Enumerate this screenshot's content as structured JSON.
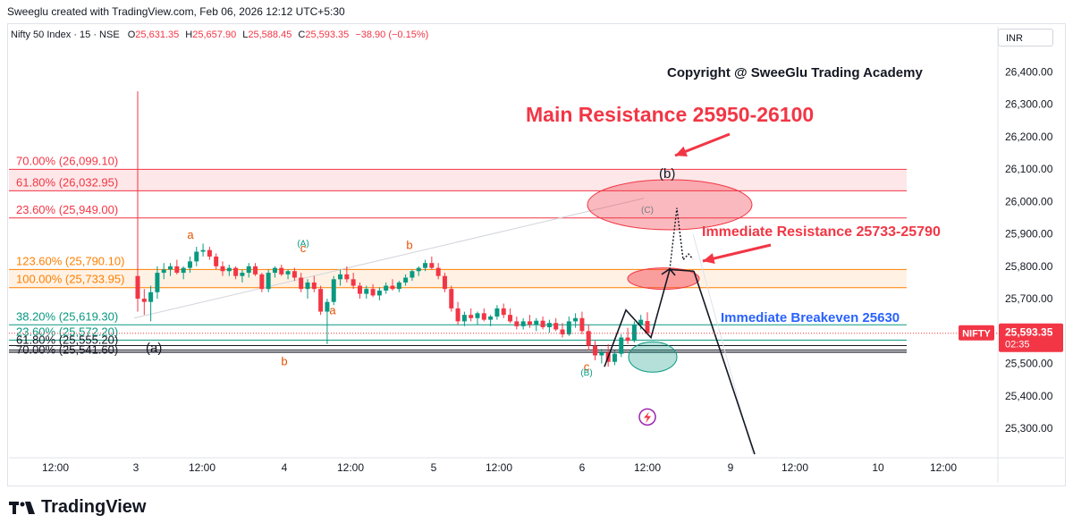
{
  "header": {
    "attribution": "Sweeglu created with TradingView.com, Feb 06, 2026 12:12 UTC+5:30",
    "symbol_line": "Nifty 50 Index · 15 · NSE",
    "o_label": "O",
    "o_value": "25,631.35",
    "h_label": "H",
    "h_value": "25,657.90",
    "l_label": "L",
    "l_value": "25,588.45",
    "c_label": "C",
    "c_value": "25,593.35",
    "change": "−38.90 (−0.15%)",
    "currency_button": "INR"
  },
  "footer": {
    "brand": "TradingView",
    "brand_icon": "tradingview-logo-icon"
  },
  "colors": {
    "up": "#089981",
    "down": "#f23645",
    "resistance_band": "#f23645",
    "orange_band": "#ff7f00",
    "teal_line": "#089981",
    "label_blue": "#2962ff",
    "price_tag": "#f23645"
  },
  "chart_data": {
    "type": "candlestick",
    "ylim": [
      25220,
      26470
    ],
    "y_ticks": [
      "26,400.00",
      "26,300.00",
      "26,200.00",
      "26,100.00",
      "26,000.00",
      "25,900.00",
      "25,800.00",
      "25,700.00",
      "25,600.00",
      "25,500.00",
      "25,400.00",
      "25,300.00"
    ],
    "y_tick_values": [
      26400,
      26300,
      26200,
      26100,
      26000,
      25900,
      25800,
      25700,
      25600,
      25500,
      25400,
      25300
    ],
    "x_ticks": [
      "12:00",
      "3",
      "12:00",
      "4",
      "12:00",
      "5",
      "12:00",
      "6",
      "12:00",
      "9",
      "12:00",
      "10",
      "12:00"
    ],
    "current_price": {
      "symbol": "NIFTY",
      "value": "25,593.35",
      "countdown": "02:35"
    },
    "fib_levels": [
      {
        "label": "70.00% (26,099.10)",
        "price": 26099.1,
        "color": "#f23645"
      },
      {
        "label": "61.80% (26,032.95)",
        "price": 26032.95,
        "color": "#f23645"
      },
      {
        "label": "23.60% (25,949.00)",
        "price": 25949.0,
        "color": "#f23645"
      },
      {
        "label": "123.60% (25,790.10)",
        "price": 25790.1,
        "color": "#ff7f00"
      },
      {
        "label": "100.00% (25,733.95)",
        "price": 25733.95,
        "color": "#ff7f00"
      },
      {
        "label": "38.20% (25,619.30)",
        "price": 25619.3,
        "color": "#089981"
      },
      {
        "label": "23.60% (25,572.20)",
        "price": 25572.2,
        "color": "#089981"
      },
      {
        "label": "61.80% (25,555.20)",
        "price": 25555.2,
        "color": "#131722"
      },
      {
        "label": "70.00% (25,541.60)",
        "price": 25541.6,
        "color": "#131722"
      }
    ],
    "annotations": {
      "copyright": "Copyright @ SweeGlu Trading Academy",
      "main_resistance": "Main Resistance 25950-26100",
      "immediate_resistance": "Immediate Resistance 25733-25790",
      "immediate_breakeven": "Immediate Breakeven 25630"
    },
    "wave_labels": [
      {
        "text": "(a)",
        "t": 0,
        "price": 25535,
        "color": "#131722"
      },
      {
        "text": "a",
        "t": 18,
        "price": 25885,
        "color": "#e65100"
      },
      {
        "text": "(A)",
        "t": 57,
        "price": 25862,
        "color": "#089981"
      },
      {
        "text": "c",
        "t": 57,
        "price": 25843,
        "color": "#e65100"
      },
      {
        "text": "b",
        "t": 52,
        "price": 25495,
        "color": "#e65100"
      },
      {
        "text": "a",
        "t": 66,
        "price": 25652,
        "color": "#e65100"
      },
      {
        "text": "b",
        "t": 91,
        "price": 25853,
        "color": "#e65100"
      },
      {
        "text": "c",
        "t": 151,
        "price": 25478,
        "color": "#e65100"
      },
      {
        "text": "(B)",
        "t": 151,
        "price": 25463,
        "color": "#089981"
      },
      {
        "text": "(b)",
        "t": 176,
        "price": 26072,
        "color": "#131722"
      },
      {
        "text": "(C)",
        "t": 173,
        "price": 25965,
        "color": "#787b86"
      }
    ],
    "candles": [
      {
        "o": 25770,
        "h": 26340,
        "l": 25660,
        "c": 25700
      },
      {
        "o": 25700,
        "h": 25730,
        "l": 25650,
        "c": 25690
      },
      {
        "o": 25690,
        "h": 25740,
        "l": 25630,
        "c": 25720
      },
      {
        "o": 25720,
        "h": 25800,
        "l": 25700,
        "c": 25780
      },
      {
        "o": 25780,
        "h": 25810,
        "l": 25760,
        "c": 25790
      },
      {
        "o": 25790,
        "h": 25810,
        "l": 25770,
        "c": 25800
      },
      {
        "o": 25800,
        "h": 25820,
        "l": 25775,
        "c": 25780
      },
      {
        "o": 25780,
        "h": 25800,
        "l": 25760,
        "c": 25795
      },
      {
        "o": 25795,
        "h": 25830,
        "l": 25780,
        "c": 25815
      },
      {
        "o": 25815,
        "h": 25860,
        "l": 25800,
        "c": 25845
      },
      {
        "o": 25845,
        "h": 25870,
        "l": 25830,
        "c": 25850
      },
      {
        "o": 25850,
        "h": 25860,
        "l": 25820,
        "c": 25830
      },
      {
        "o": 25830,
        "h": 25840,
        "l": 25790,
        "c": 25800
      },
      {
        "o": 25800,
        "h": 25815,
        "l": 25770,
        "c": 25785
      },
      {
        "o": 25785,
        "h": 25805,
        "l": 25770,
        "c": 25795
      },
      {
        "o": 25795,
        "h": 25800,
        "l": 25760,
        "c": 25770
      },
      {
        "o": 25770,
        "h": 25790,
        "l": 25750,
        "c": 25780
      },
      {
        "o": 25780,
        "h": 25810,
        "l": 25765,
        "c": 25800
      },
      {
        "o": 25800,
        "h": 25810,
        "l": 25770,
        "c": 25775
      },
      {
        "o": 25775,
        "h": 25780,
        "l": 25720,
        "c": 25730
      },
      {
        "o": 25730,
        "h": 25790,
        "l": 25720,
        "c": 25780
      },
      {
        "o": 25780,
        "h": 25800,
        "l": 25765,
        "c": 25795
      },
      {
        "o": 25795,
        "h": 25805,
        "l": 25770,
        "c": 25775
      },
      {
        "o": 25775,
        "h": 25790,
        "l": 25760,
        "c": 25785
      },
      {
        "o": 25785,
        "h": 25795,
        "l": 25755,
        "c": 25765
      },
      {
        "o": 25765,
        "h": 25780,
        "l": 25720,
        "c": 25730
      },
      {
        "o": 25730,
        "h": 25760,
        "l": 25700,
        "c": 25750
      },
      {
        "o": 25750,
        "h": 25770,
        "l": 25720,
        "c": 25730
      },
      {
        "o": 25730,
        "h": 25740,
        "l": 25650,
        "c": 25660
      },
      {
        "o": 25660,
        "h": 25700,
        "l": 25560,
        "c": 25690
      },
      {
        "o": 25690,
        "h": 25770,
        "l": 25680,
        "c": 25760
      },
      {
        "o": 25760,
        "h": 25790,
        "l": 25740,
        "c": 25775
      },
      {
        "o": 25775,
        "h": 25800,
        "l": 25750,
        "c": 25760
      },
      {
        "o": 25760,
        "h": 25780,
        "l": 25730,
        "c": 25740
      },
      {
        "o": 25740,
        "h": 25750,
        "l": 25700,
        "c": 25715
      },
      {
        "o": 25715,
        "h": 25740,
        "l": 25700,
        "c": 25730
      },
      {
        "o": 25730,
        "h": 25745,
        "l": 25705,
        "c": 25710
      },
      {
        "o": 25710,
        "h": 25735,
        "l": 25695,
        "c": 25725
      },
      {
        "o": 25725,
        "h": 25750,
        "l": 25715,
        "c": 25740
      },
      {
        "o": 25740,
        "h": 25760,
        "l": 25725,
        "c": 25730
      },
      {
        "o": 25730,
        "h": 25755,
        "l": 25720,
        "c": 25750
      },
      {
        "o": 25750,
        "h": 25775,
        "l": 25740,
        "c": 25765
      },
      {
        "o": 25765,
        "h": 25790,
        "l": 25755,
        "c": 25785
      },
      {
        "o": 25785,
        "h": 25800,
        "l": 25770,
        "c": 25795
      },
      {
        "o": 25795,
        "h": 25820,
        "l": 25785,
        "c": 25810
      },
      {
        "o": 25810,
        "h": 25830,
        "l": 25790,
        "c": 25795
      },
      {
        "o": 25795,
        "h": 25810,
        "l": 25760,
        "c": 25770
      },
      {
        "o": 25770,
        "h": 25780,
        "l": 25720,
        "c": 25730
      },
      {
        "o": 25730,
        "h": 25740,
        "l": 25660,
        "c": 25670
      },
      {
        "o": 25670,
        "h": 25690,
        "l": 25620,
        "c": 25630
      },
      {
        "o": 25630,
        "h": 25660,
        "l": 25615,
        "c": 25650
      },
      {
        "o": 25650,
        "h": 25670,
        "l": 25630,
        "c": 25640
      },
      {
        "o": 25640,
        "h": 25660,
        "l": 25620,
        "c": 25655
      },
      {
        "o": 25655,
        "h": 25670,
        "l": 25630,
        "c": 25635
      },
      {
        "o": 25635,
        "h": 25650,
        "l": 25615,
        "c": 25645
      },
      {
        "o": 25645,
        "h": 25680,
        "l": 25635,
        "c": 25670
      },
      {
        "o": 25670,
        "h": 25685,
        "l": 25640,
        "c": 25650
      },
      {
        "o": 25650,
        "h": 25670,
        "l": 25625,
        "c": 25630
      },
      {
        "o": 25630,
        "h": 25645,
        "l": 25605,
        "c": 25615
      },
      {
        "o": 25615,
        "h": 25640,
        "l": 25605,
        "c": 25630
      },
      {
        "o": 25630,
        "h": 25650,
        "l": 25610,
        "c": 25620
      },
      {
        "o": 25620,
        "h": 25640,
        "l": 25600,
        "c": 25632
      },
      {
        "o": 25632,
        "h": 25645,
        "l": 25605,
        "c": 25612
      },
      {
        "o": 25612,
        "h": 25635,
        "l": 25595,
        "c": 25625
      },
      {
        "o": 25625,
        "h": 25640,
        "l": 25600,
        "c": 25605
      },
      {
        "o": 25605,
        "h": 25625,
        "l": 25580,
        "c": 25590
      },
      {
        "o": 25590,
        "h": 25645,
        "l": 25585,
        "c": 25630
      },
      {
        "o": 25630,
        "h": 25655,
        "l": 25610,
        "c": 25640
      },
      {
        "o": 25640,
        "h": 25660,
        "l": 25590,
        "c": 25600
      },
      {
        "o": 25600,
        "h": 25620,
        "l": 25540,
        "c": 25555
      },
      {
        "o": 25555,
        "h": 25570,
        "l": 25510,
        "c": 25525
      },
      {
        "o": 25525,
        "h": 25545,
        "l": 25500,
        "c": 25535
      },
      {
        "o": 25535,
        "h": 25560,
        "l": 25490,
        "c": 25505
      },
      {
        "o": 25505,
        "h": 25540,
        "l": 25495,
        "c": 25530
      },
      {
        "o": 25530,
        "h": 25590,
        "l": 25520,
        "c": 25580
      },
      {
        "o": 25580,
        "h": 25610,
        "l": 25560,
        "c": 25570
      },
      {
        "o": 25570,
        "h": 25630,
        "l": 25565,
        "c": 25620
      },
      {
        "o": 25620,
        "h": 25650,
        "l": 25605,
        "c": 25635
      },
      {
        "o": 25631,
        "h": 25658,
        "l": 25588,
        "c": 25593
      }
    ],
    "candle_x_start": 0,
    "candle_x_end": 78,
    "time_span": [
      0,
      262
    ]
  }
}
